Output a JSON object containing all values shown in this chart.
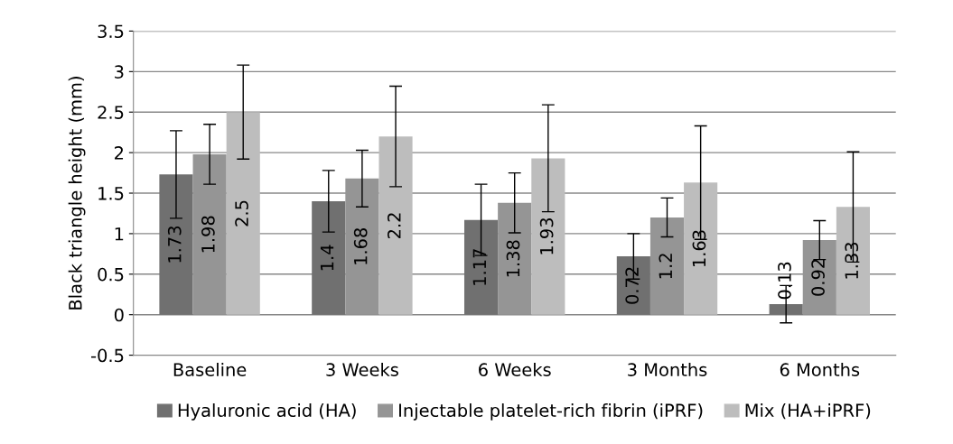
{
  "chart_data": {
    "type": "bar",
    "ylabel": "Black triangle height (mm)",
    "categories": [
      "Baseline",
      "3 Weeks",
      "6 Weeks",
      "3 Months",
      "6 Months"
    ],
    "series": [
      {
        "name": "Hyaluronic acid (HA)",
        "color": "#707070",
        "values": [
          1.73,
          1.4,
          1.17,
          0.72,
          0.13
        ],
        "errors": [
          0.54,
          0.38,
          0.44,
          0.28,
          0.23
        ]
      },
      {
        "name": "Injectable platelet-rich fibrin (iPRF)",
        "color": "#959595",
        "values": [
          1.98,
          1.68,
          1.38,
          1.2,
          0.92
        ],
        "errors": [
          0.37,
          0.35,
          0.37,
          0.24,
          0.24
        ]
      },
      {
        "name": "Mix (HA+iPRF)",
        "color": "#bdbdbd",
        "values": [
          2.5,
          2.2,
          1.93,
          1.63,
          1.33
        ],
        "errors": [
          0.58,
          0.62,
          0.66,
          0.7,
          0.68
        ]
      }
    ],
    "ylim": [
      -0.5,
      3.5
    ],
    "yticks": [
      -0.5,
      0,
      0.5,
      1,
      1.5,
      2,
      2.5,
      3,
      3.5
    ],
    "grid": "y",
    "legend": "bottom",
    "data_labels": true
  }
}
